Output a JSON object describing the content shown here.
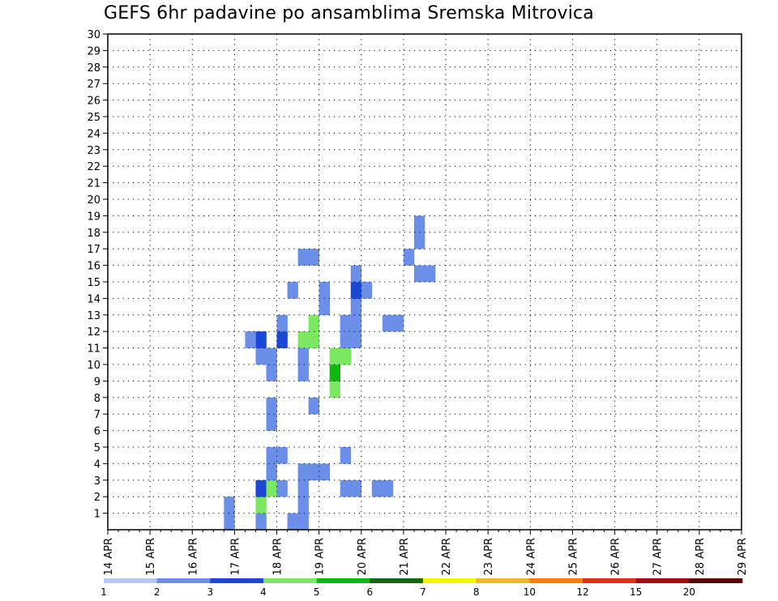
{
  "chart_data": {
    "type": "heatmap",
    "title": "GEFS 6hr padavine po ansamblima Sremska Mitrovica",
    "xlabel": "",
    "ylabel": "",
    "x_ticks": [
      "14 APR",
      "15 APR",
      "16 APR",
      "17 APR",
      "18 APR",
      "19 APR",
      "20 APR",
      "21 APR",
      "22 APR",
      "23 APR",
      "24 APR",
      "25 APR",
      "26 APR",
      "27 APR",
      "28 APR",
      "29 APR"
    ],
    "x_start_label": "14 APR",
    "x_step_hours": 6,
    "y_ticks": [
      "1",
      "2",
      "3",
      "4",
      "5",
      "6",
      "7",
      "8",
      "9",
      "10",
      "11",
      "12",
      "13",
      "14",
      "15",
      "16",
      "17",
      "18",
      "19",
      "20",
      "21",
      "22",
      "23",
      "24",
      "25",
      "26",
      "27",
      "28",
      "29",
      "30"
    ],
    "ylim": [
      0,
      30
    ],
    "grid": true,
    "colorbar": {
      "labels": [
        "1",
        "2",
        "3",
        "4",
        "5",
        "6",
        "7",
        "8",
        "10",
        "12",
        "15",
        "20"
      ],
      "colors": [
        "#b4c7f5",
        "#6b8fe8",
        "#1a47d6",
        "#7ae860",
        "#0fb80f",
        "#0d6b0d",
        "#f5f500",
        "#f5b430",
        "#f58010",
        "#e03010",
        "#a01010",
        "#600000"
      ]
    },
    "cells": [
      [
        25,
        3,
        1
      ],
      [
        14,
        1,
        1
      ],
      [
        14,
        2,
        3
      ],
      [
        14,
        3,
        2
      ],
      [
        15,
        3,
        3
      ],
      [
        15,
        4,
        1
      ],
      [
        15,
        5,
        1
      ],
      [
        18,
        3,
        1
      ],
      [
        18,
        10,
        1
      ],
      [
        18,
        11,
        1
      ],
      [
        18,
        11,
        1
      ],
      [
        18,
        12,
        3
      ],
      [
        19,
        12,
        3
      ],
      [
        19,
        13,
        3
      ],
      [
        19,
        8,
        1
      ],
      [
        20,
        14,
        1
      ],
      [
        20,
        14,
        1
      ],
      [
        20,
        15,
        1
      ],
      [
        21,
        9,
        3
      ],
      [
        21,
        10,
        4
      ],
      [
        21,
        11,
        3
      ],
      [
        22,
        11,
        3
      ],
      [
        22,
        12,
        1
      ],
      [
        22,
        13,
        1
      ],
      [
        23,
        12,
        1
      ],
      [
        23,
        13,
        1
      ],
      [
        23,
        14,
        1
      ],
      [
        23,
        15,
        2
      ],
      [
        23,
        16,
        1
      ],
      [
        16,
        3,
        1
      ],
      [
        16,
        5,
        1
      ],
      [
        17,
        1,
        1
      ],
      [
        18,
        1,
        1
      ],
      [
        18,
        2,
        1
      ],
      [
        18,
        4,
        1
      ],
      [
        19,
        4,
        1
      ],
      [
        20,
        4,
        1
      ],
      [
        22,
        3,
        1
      ],
      [
        22,
        5,
        1
      ],
      [
        23,
        3,
        1
      ],
      [
        26,
        3,
        1
      ],
      [
        11,
        1,
        1
      ],
      [
        11,
        2,
        1
      ],
      [
        14,
        11,
        1
      ],
      [
        14,
        12,
        2
      ],
      [
        15,
        7,
        1
      ],
      [
        15,
        8,
        1
      ],
      [
        15,
        10,
        1
      ],
      [
        15,
        11,
        1
      ],
      [
        16,
        12,
        2
      ],
      [
        16,
        13,
        1
      ],
      [
        13,
        12,
        1
      ],
      [
        24,
        15,
        1
      ],
      [
        17,
        15,
        1
      ],
      [
        18,
        17,
        1
      ],
      [
        19,
        17,
        1
      ],
      [
        26,
        13,
        1
      ],
      [
        27,
        13,
        1
      ],
      [
        28,
        17,
        1
      ],
      [
        29,
        16,
        1
      ],
      [
        29,
        18,
        1
      ],
      [
        30,
        16,
        1
      ],
      [
        29,
        19,
        1
      ]
    ]
  }
}
